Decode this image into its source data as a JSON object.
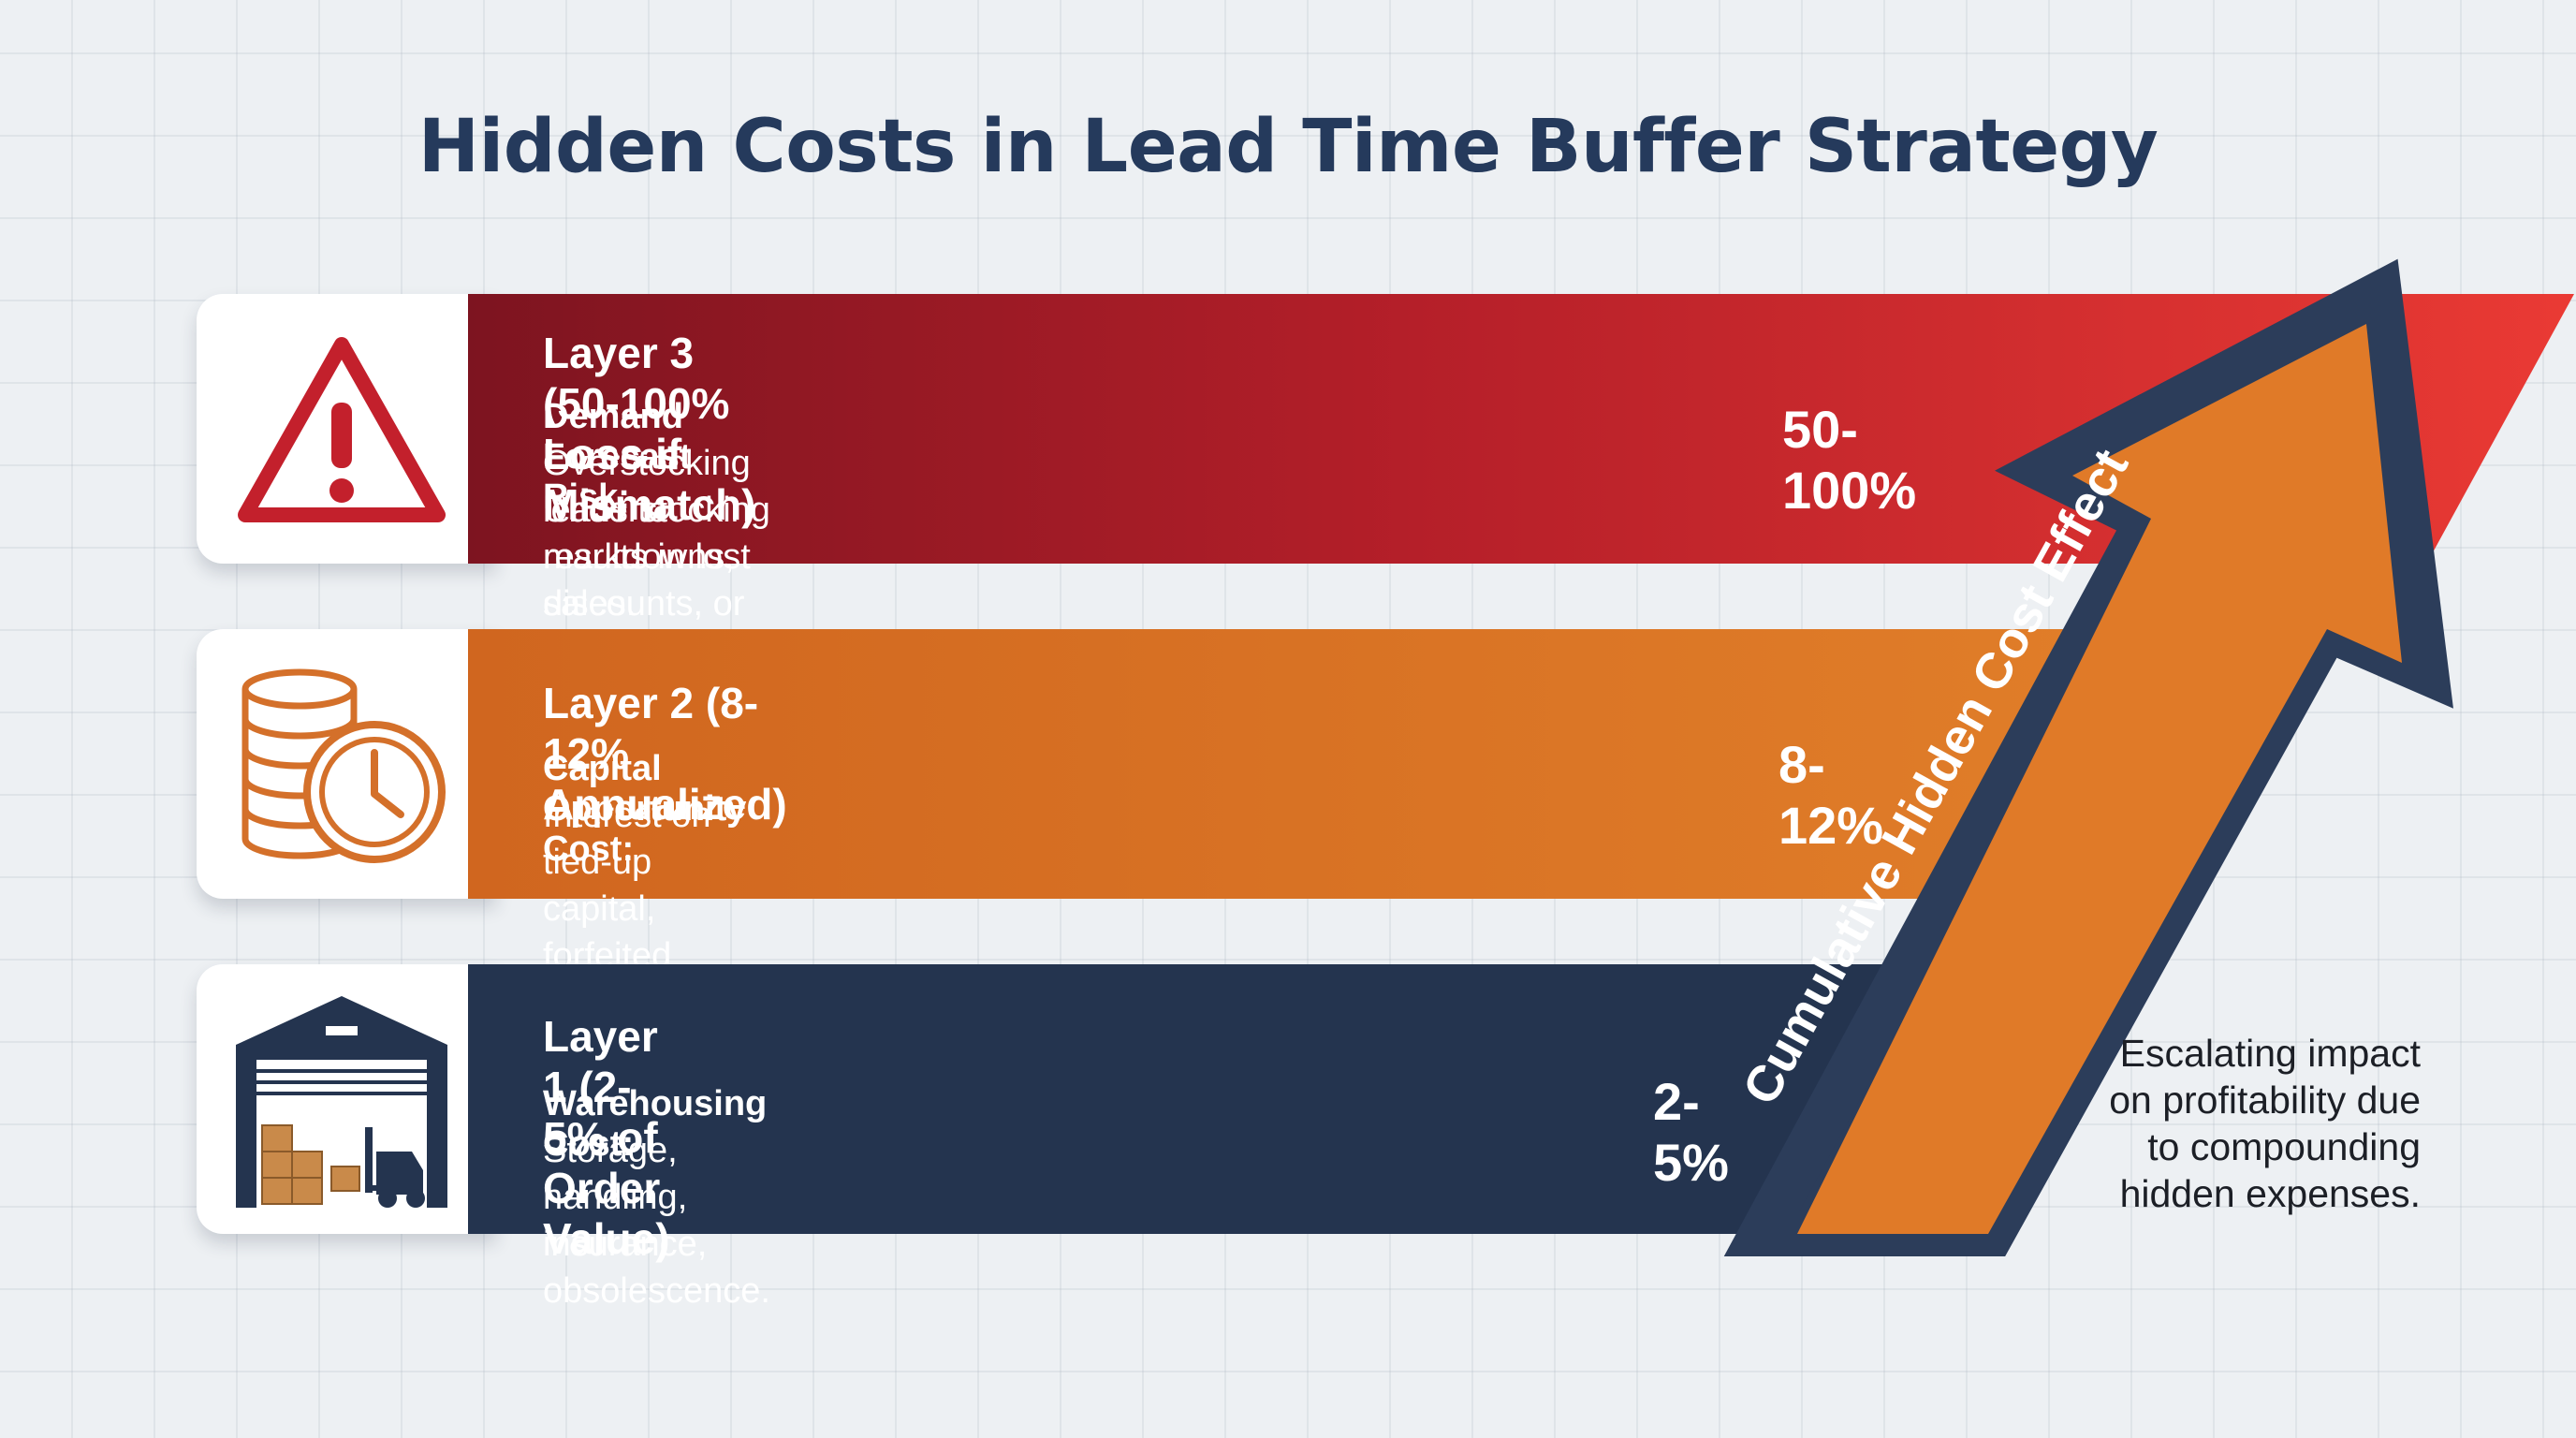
{
  "title": "Hidden Costs in Lead Time Buffer Strategy",
  "layers": [
    {
      "name": "Layer 3 (50-100% Loss if Mismatch)",
      "subtitle": "Demand Forecast Risk:",
      "description": [
        "Overstocking leads to markdowns, discounts, or write-offs.",
        "Understocking results in lost sales."
      ],
      "percent": "50-100%",
      "icon": "warning-icon",
      "color": "#b51f29"
    },
    {
      "name": "Layer 2 (8-12% Annualized)",
      "subtitle": "Capital Opportunity Cost:",
      "description": [
        "Interest on tied-up capital, forfeited investment returns."
      ],
      "percent": "8-12%",
      "icon": "coins-clock-icon",
      "color": "#e07a28"
    },
    {
      "name": "Layer 1 (2-5% of Order Value)",
      "subtitle": "Warehousing Cost:",
      "description": [
        "Storage, handling, insurance, obsolescence."
      ],
      "percent": "2-5%",
      "icon": "warehouse-icon",
      "color": "#24344f"
    }
  ],
  "arrow": {
    "label": "Cumulative Hidden Cost Effect",
    "color": "#e07a28"
  },
  "side_note": [
    "Escalating impact",
    "on profitability due",
    "to compounding",
    "hidden expenses."
  ]
}
